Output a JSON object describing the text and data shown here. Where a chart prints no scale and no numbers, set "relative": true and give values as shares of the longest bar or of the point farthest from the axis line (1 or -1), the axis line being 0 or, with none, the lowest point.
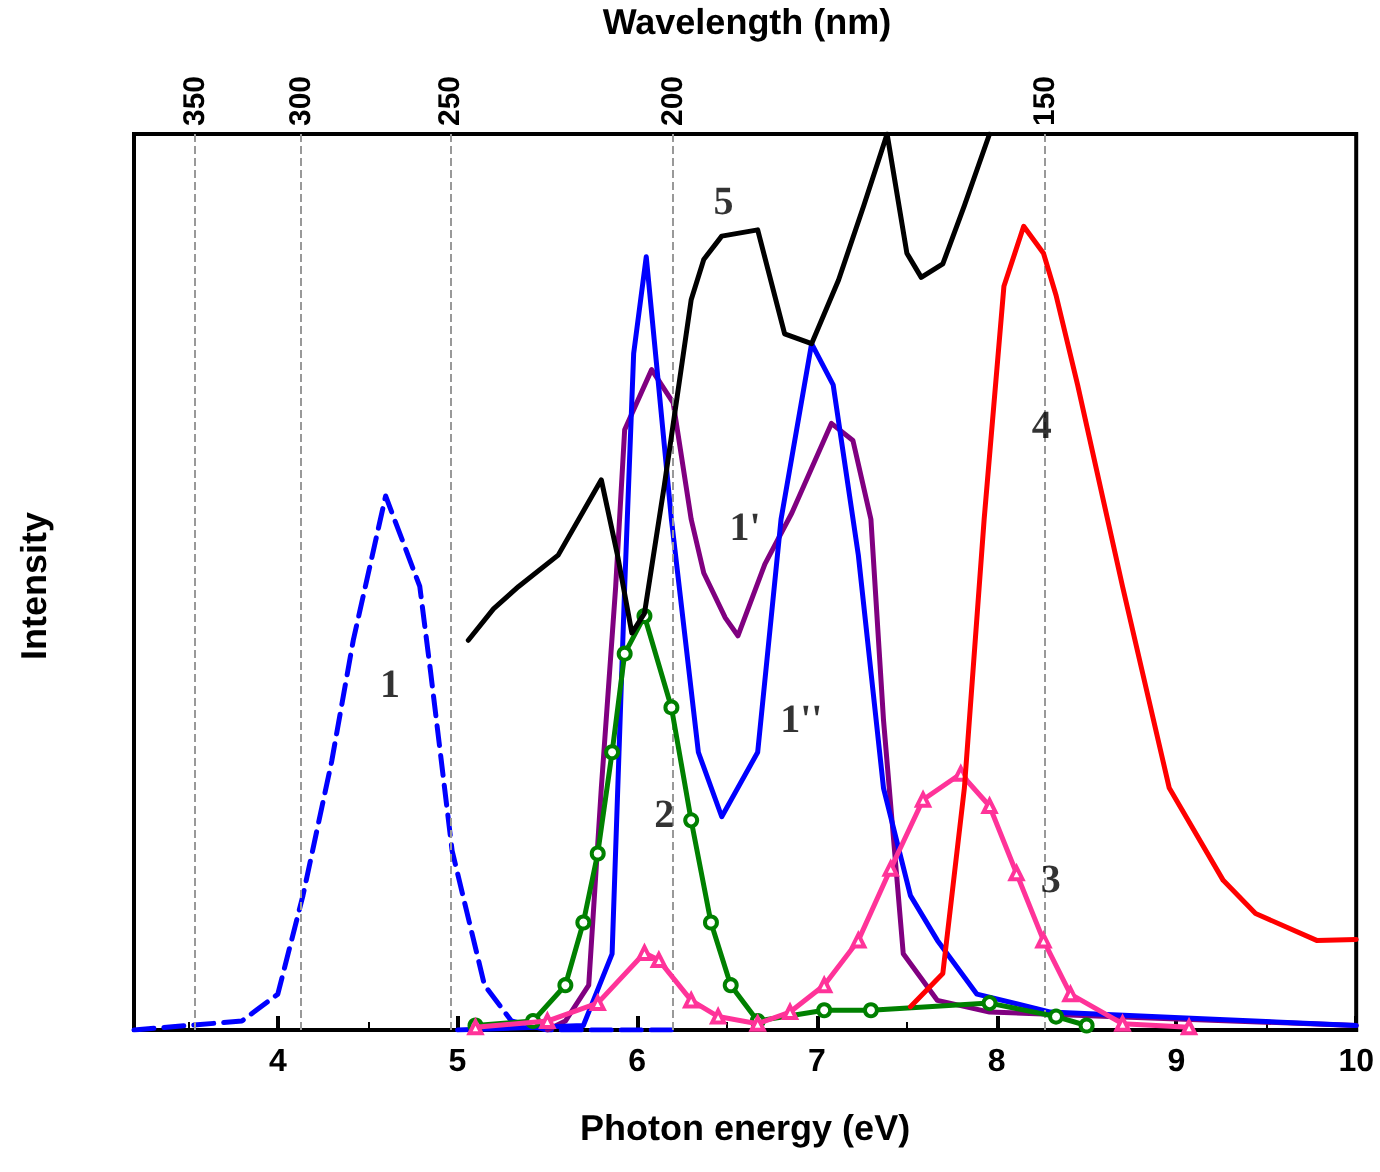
{
  "chart_data": {
    "type": "line",
    "xlabel": "Photon energy (eV)",
    "ylabel": "Intensity",
    "relative": true,
    "xlim": [
      3.2,
      10
    ],
    "xticks": [
      4,
      5,
      6,
      7,
      8,
      9,
      10
    ],
    "grid": false,
    "marker": "none",
    "line_style": "solid",
    "series": [
      {
        "color": "#0000ff",
        "line_style": "dashed",
        "x": [
          3.2,
          3.8,
          4.0,
          4.14,
          4.3,
          4.42,
          4.6,
          4.79,
          4.85,
          4.97,
          5.15,
          5.3,
          5.5,
          6.2
        ],
        "values": [
          0,
          0.01,
          0.04,
          0.15,
          0.3,
          0.435,
          0.596,
          0.495,
          0.4,
          0.2,
          0.05,
          0.01,
          0,
          0
        ]
      },
      {
        "color": "#800080",
        "x": [
          5.5,
          5.6,
          5.73,
          5.8,
          5.88,
          5.93,
          6.08,
          6.2,
          6.3,
          6.37,
          6.49,
          6.56,
          6.71,
          6.86,
          7.08,
          7.2,
          7.3,
          7.37,
          7.48,
          7.67,
          7.96,
          10
        ],
        "values": [
          0,
          0.01,
          0.05,
          0.27,
          0.495,
          0.67,
          0.737,
          0.7,
          0.57,
          0.51,
          0.46,
          0.44,
          0.52,
          0.577,
          0.677,
          0.658,
          0.57,
          0.346,
          0.085,
          0.033,
          0.02,
          0.005
        ]
      },
      {
        "color": "#0000ff",
        "x": [
          5.0,
          5.7,
          5.86,
          5.93,
          5.98,
          6.05,
          6.19,
          6.34,
          6.47,
          6.67,
          6.8,
          6.97,
          7.09,
          7.23,
          7.37,
          7.52,
          7.67,
          7.89,
          8.3,
          10
        ],
        "values": [
          0,
          0.005,
          0.085,
          0.495,
          0.755,
          0.863,
          0.57,
          0.31,
          0.238,
          0.31,
          0.57,
          0.766,
          0.72,
          0.53,
          0.27,
          0.15,
          0.1,
          0.04,
          0.02,
          0.005
        ]
      },
      {
        "color": "#008000",
        "marker": "circle",
        "x": [
          5.1,
          5.42,
          5.6,
          5.7,
          5.78,
          5.86,
          5.93,
          6.04,
          6.19,
          6.3,
          6.41,
          6.52,
          6.67,
          7.04,
          7.3,
          7.96,
          8.33,
          8.5
        ],
        "values": [
          0.005,
          0.01,
          0.05,
          0.12,
          0.197,
          0.31,
          0.42,
          0.462,
          0.36,
          0.234,
          0.12,
          0.05,
          0.01,
          0.022,
          0.022,
          0.03,
          0.015,
          0.005
        ]
      },
      {
        "color": "#ff3399",
        "marker": "triangle",
        "x": [
          5.1,
          5.5,
          5.78,
          6.04,
          6.12,
          6.3,
          6.45,
          6.67,
          6.85,
          7.04,
          7.23,
          7.41,
          7.59,
          7.8,
          7.96,
          8.11,
          8.26,
          8.41,
          8.7,
          9.07
        ],
        "values": [
          0.003,
          0.01,
          0.03,
          0.086,
          0.078,
          0.033,
          0.015,
          0.007,
          0.02,
          0.05,
          0.1,
          0.18,
          0.257,
          0.286,
          0.25,
          0.175,
          0.1,
          0.04,
          0.007,
          0.003
        ]
      },
      {
        "color": "#ff0000",
        "x": [
          7.52,
          7.7,
          7.82,
          7.93,
          8.04,
          8.15,
          8.26,
          8.33,
          8.45,
          8.7,
          8.96,
          9.26,
          9.44,
          9.78,
          10
        ],
        "values": [
          0.026,
          0.063,
          0.27,
          0.57,
          0.83,
          0.897,
          0.867,
          0.82,
          0.72,
          0.495,
          0.27,
          0.167,
          0.13,
          0.1,
          0.101
        ]
      },
      {
        "color": "#000000",
        "x": [
          5.06,
          5.2,
          5.34,
          5.56,
          5.8,
          5.89,
          5.97,
          6.04,
          6.15,
          6.3,
          6.37,
          6.47,
          6.67,
          6.82,
          6.97,
          7.12,
          7.26,
          7.39,
          7.5,
          7.58,
          7.7,
          7.82,
          7.96
        ],
        "values": [
          0.435,
          0.47,
          0.495,
          0.53,
          0.614,
          0.53,
          0.443,
          0.465,
          0.607,
          0.815,
          0.86,
          0.886,
          0.893,
          0.777,
          0.766,
          0.837,
          0.92,
          1.0,
          0.867,
          0.84,
          0.855,
          0.92,
          1.0
        ]
      }
    ],
    "ref_lines": [
      {
        "axis": "x",
        "value": 3.54,
        "color": "#999999",
        "line_style": "dashed"
      },
      {
        "axis": "x",
        "value": 4.13,
        "color": "#999999",
        "line_style": "dashed"
      },
      {
        "axis": "x",
        "value": 4.96,
        "color": "#999999",
        "line_style": "dashed"
      },
      {
        "axis": "x",
        "value": 6.2,
        "color": "#999999",
        "line_style": "dashed"
      },
      {
        "axis": "x",
        "value": 8.27,
        "color": "#999999",
        "line_style": "dashed"
      }
    ],
    "annotations": [
      "Wavelength (nm)",
      "350",
      "300",
      "250",
      "200",
      "150",
      {
        "text": "1",
        "x": 4.38,
        "y": 0.385
      },
      {
        "text": "1'",
        "x": 6.31,
        "y": 0.56
      },
      {
        "text": "1''",
        "x": 6.69,
        "y": 0.346
      },
      {
        "text": "2",
        "x": 6.15,
        "y": 0.24
      },
      {
        "text": "3",
        "x": 8.3,
        "y": 0.167
      },
      {
        "text": "4",
        "x": 8.25,
        "y": 0.674
      },
      {
        "text": "5",
        "x": 6.48,
        "y": 0.886
      }
    ]
  }
}
